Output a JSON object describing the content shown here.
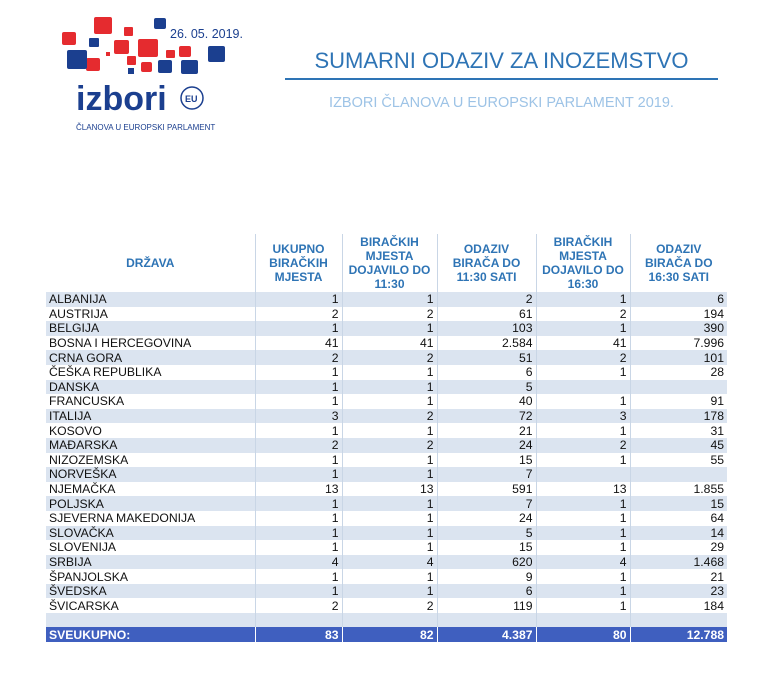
{
  "logo": {
    "date": "26. 05. 2019.",
    "word": "izbori",
    "badge": "EU",
    "tagline": "ČLANOVA U EUROPSKI PARLAMENT"
  },
  "title": "SUMARNI ODAZIV ZA INOZEMSTVO",
  "subtitle": "IZBORI ČLANOVA U EUROPSKI PARLAMENT 2019.",
  "headers": [
    "DRŽAVA",
    "UKUPNO BIRAČKIH MJESTA",
    "BIRAČKIH MJESTA DOJAVILO DO 11:30",
    "ODAZIV BIRAČA DO 11:30 SATI",
    "BIRAČKIH MJESTA DOJAVILO DO 16:30",
    "ODAZIV BIRAČA DO 16:30 SATI"
  ],
  "rows": [
    [
      "ALBANIJA",
      "1",
      "1",
      "2",
      "1",
      "6"
    ],
    [
      "AUSTRIJA",
      "2",
      "2",
      "61",
      "2",
      "194"
    ],
    [
      "BELGIJA",
      "1",
      "1",
      "103",
      "1",
      "390"
    ],
    [
      "BOSNA I HERCEGOVINA",
      "41",
      "41",
      "2.584",
      "41",
      "7.996"
    ],
    [
      "CRNA GORA",
      "2",
      "2",
      "51",
      "2",
      "101"
    ],
    [
      "ČEŠKA REPUBLIKA",
      "1",
      "1",
      "6",
      "1",
      "28"
    ],
    [
      "DANSKA",
      "1",
      "1",
      "5",
      "",
      ""
    ],
    [
      "FRANCUSKA",
      "1",
      "1",
      "40",
      "1",
      "91"
    ],
    [
      "ITALIJA",
      "3",
      "2",
      "72",
      "3",
      "178"
    ],
    [
      "KOSOVO",
      "1",
      "1",
      "21",
      "1",
      "31"
    ],
    [
      "MAĐARSKA",
      "2",
      "2",
      "24",
      "2",
      "45"
    ],
    [
      "NIZOZEMSKA",
      "1",
      "1",
      "15",
      "1",
      "55"
    ],
    [
      "NORVEŠKA",
      "1",
      "1",
      "7",
      "",
      ""
    ],
    [
      "NJEMAČKA",
      "13",
      "13",
      "591",
      "13",
      "1.855"
    ],
    [
      "POLJSKA",
      "1",
      "1",
      "7",
      "1",
      "15"
    ],
    [
      "SJEVERNA MAKEDONIJA",
      "1",
      "1",
      "24",
      "1",
      "64"
    ],
    [
      "SLOVAČKA",
      "1",
      "1",
      "5",
      "1",
      "14"
    ],
    [
      "SLOVENIJA",
      "1",
      "1",
      "15",
      "1",
      "29"
    ],
    [
      "SRBIJA",
      "4",
      "4",
      "620",
      "4",
      "1.468"
    ],
    [
      "ŠPANJOLSKA",
      "1",
      "1",
      "9",
      "1",
      "21"
    ],
    [
      "ŠVEDSKA",
      "1",
      "1",
      "6",
      "1",
      "23"
    ],
    [
      "ŠVICARSKA",
      "2",
      "2",
      "119",
      "1",
      "184"
    ]
  ],
  "total": [
    "SVEUKUPNO:",
    "83",
    "82",
    "4.387",
    "80",
    "12.788"
  ]
}
